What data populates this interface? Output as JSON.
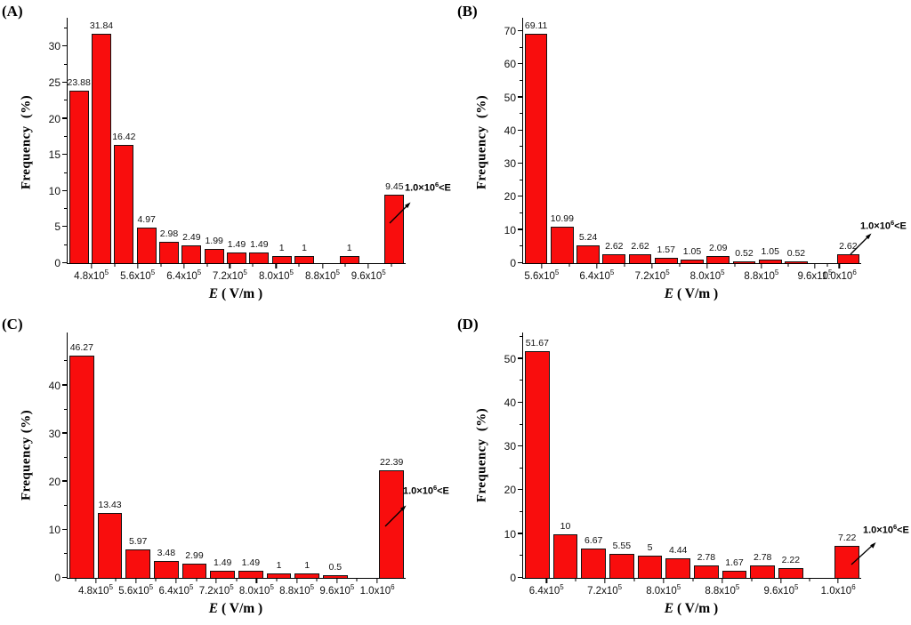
{
  "figure": {
    "xlabel_italic": "E",
    "xlabel_rest": " ( V/m )",
    "annotation_pre": "1.0×10",
    "annotation_sup": "6",
    "annotation_post": "<E"
  },
  "chart_data": [
    {
      "type": "bar",
      "panel": "(A)",
      "ylabel": "Frequency  (%)",
      "xlabel": "E ( V/m )",
      "bar_color": "#f90d0d",
      "annotation": "1.0×10^6<E",
      "ymax": 34,
      "values": [
        23.88,
        31.84,
        16.42,
        4.97,
        2.98,
        2.49,
        1.99,
        1.49,
        1.49,
        1,
        1,
        null,
        1,
        null,
        9.45
      ],
      "value_labels": [
        "23.88",
        "31.84",
        "16.42",
        "4.97",
        "2.98",
        "2.49",
        "1.99",
        "1.49",
        "1.49",
        "1",
        "1",
        "",
        "1",
        "",
        "9.45"
      ],
      "yticks": [
        {
          "v": 0,
          "label": "0"
        },
        {
          "v": 5,
          "label": "5"
        },
        {
          "v": 10,
          "label": "10"
        },
        {
          "v": 15,
          "label": "15"
        },
        {
          "v": 20,
          "label": "20"
        },
        {
          "v": 25,
          "label": "25"
        },
        {
          "v": 30,
          "label": "30"
        }
      ],
      "yticks_minor": [
        2.5,
        7.5,
        12.5,
        17.5,
        22.5,
        27.5,
        32.5
      ],
      "xticks": [
        {
          "label": "4.8x10",
          "sup": "5",
          "pos": 7.0
        },
        {
          "label": "5.6x10",
          "sup": "5",
          "pos": 20.7
        },
        {
          "label": "6.4x10",
          "sup": "5",
          "pos": 34.4
        },
        {
          "label": "7.2x10",
          "sup": "5",
          "pos": 48.0
        },
        {
          "label": "8.0x10",
          "sup": "5",
          "pos": 61.7
        },
        {
          "label": "8.8x10",
          "sup": "5",
          "pos": 75.4
        },
        {
          "label": "9.6x10",
          "sup": "5",
          "pos": 89.0
        }
      ]
    },
    {
      "type": "bar",
      "panel": "(B)",
      "ylabel": "Frequency  (%)",
      "xlabel": "E ( V/m )",
      "bar_color": "#f90d0d",
      "annotation": "1.0×10^6<E",
      "ymax": 74,
      "values": [
        69.11,
        10.99,
        5.24,
        2.62,
        2.62,
        1.57,
        1.05,
        2.09,
        0.52,
        1.05,
        0.52,
        null,
        2.62
      ],
      "value_labels": [
        "69.11",
        "10.99",
        "5.24",
        "2.62",
        "2.62",
        "1.57",
        "1.05",
        "2.09",
        "0.52",
        "1.05",
        "0.52",
        "",
        "2.62"
      ],
      "yticks": [
        {
          "v": 0,
          "label": "0"
        },
        {
          "v": 10,
          "label": "10"
        },
        {
          "v": 20,
          "label": "20"
        },
        {
          "v": 30,
          "label": "30"
        },
        {
          "v": 40,
          "label": "40"
        },
        {
          "v": 50,
          "label": "50"
        },
        {
          "v": 60,
          "label": "60"
        },
        {
          "v": 70,
          "label": "70"
        }
      ],
      "yticks_minor": [
        5,
        15,
        25,
        35,
        45,
        55,
        65
      ],
      "xticks": [
        {
          "label": "5.6x10",
          "sup": "5",
          "pos": 5.5
        },
        {
          "label": "6.4x10",
          "sup": "5",
          "pos": 21.8
        },
        {
          "label": "7.2x10",
          "sup": "5",
          "pos": 38.2
        },
        {
          "label": "8.0x10",
          "sup": "5",
          "pos": 54.5
        },
        {
          "label": "8.8x10",
          "sup": "5",
          "pos": 70.5
        },
        {
          "label": "9.6x10",
          "sup": "5",
          "pos": 86.3
        },
        {
          "label": "1.0x10",
          "sup": "6",
          "pos": 93.5
        }
      ]
    },
    {
      "type": "bar",
      "panel": "(C)",
      "ylabel": "Frequency (%)",
      "xlabel": "E ( V/m )",
      "bar_color": "#f90d0d",
      "annotation": "1.0×10^6<E",
      "ymax": 51,
      "values": [
        46.27,
        13.43,
        5.97,
        3.48,
        2.99,
        1.49,
        1.49,
        1,
        1,
        0.5,
        null,
        22.39
      ],
      "value_labels": [
        "46.27",
        "13.43",
        "5.97",
        "3.48",
        "2.99",
        "1.49",
        "1.49",
        "1",
        "1",
        "0.5",
        "",
        "22.39"
      ],
      "yticks": [
        {
          "v": 0,
          "label": "0"
        },
        {
          "v": 10,
          "label": "10"
        },
        {
          "v": 20,
          "label": "20"
        },
        {
          "v": 30,
          "label": "30"
        },
        {
          "v": 40,
          "label": "40"
        }
      ],
      "yticks_minor": [
        5,
        15,
        25,
        35,
        45
      ],
      "xticks": [
        {
          "label": "4.8x10",
          "sup": "5",
          "pos": 8.3
        },
        {
          "label": "5.6x10",
          "sup": "5",
          "pos": 20.2
        },
        {
          "label": "6.4x10",
          "sup": "5",
          "pos": 32.1
        },
        {
          "label": "7.2x10",
          "sup": "5",
          "pos": 44.0
        },
        {
          "label": "8.0x10",
          "sup": "5",
          "pos": 55.9
        },
        {
          "label": "8.8x10",
          "sup": "5",
          "pos": 67.8
        },
        {
          "label": "9.6x10",
          "sup": "5",
          "pos": 79.7
        },
        {
          "label": "1.0x10",
          "sup": "6",
          "pos": 91.6
        }
      ]
    },
    {
      "type": "bar",
      "panel": "(D)",
      "ylabel": "Frequency  (%)",
      "xlabel": "E ( V/m )",
      "bar_color": "#f90d0d",
      "annotation": "1.0×10^6<E",
      "ymax": 56,
      "values": [
        51.67,
        10,
        6.67,
        5.55,
        5,
        4.44,
        2.78,
        1.67,
        2.78,
        2.22,
        null,
        7.22
      ],
      "value_labels": [
        "51.67",
        "10",
        "6.67",
        "5.55",
        "5",
        "4.44",
        "2.78",
        "1.67",
        "2.78",
        "2.22",
        "",
        "7.22"
      ],
      "yticks": [
        {
          "v": 0,
          "label": "0"
        },
        {
          "v": 10,
          "label": "10"
        },
        {
          "v": 20,
          "label": "20"
        },
        {
          "v": 30,
          "label": "30"
        },
        {
          "v": 40,
          "label": "40"
        },
        {
          "v": 50,
          "label": "50"
        }
      ],
      "yticks_minor": [
        5,
        15,
        25,
        35,
        45,
        55
      ],
      "xticks": [
        {
          "label": "6.4x10",
          "sup": "5",
          "pos": 6.9
        },
        {
          "label": "7.2x10",
          "sup": "5",
          "pos": 24.1
        },
        {
          "label": "8.0x10",
          "sup": "5",
          "pos": 41.5
        },
        {
          "label": "8.8x10",
          "sup": "5",
          "pos": 58.9
        },
        {
          "label": "9.6x10",
          "sup": "5",
          "pos": 76.3
        },
        {
          "label": "1.0x10",
          "sup": "6",
          "pos": 93.2
        }
      ]
    }
  ]
}
